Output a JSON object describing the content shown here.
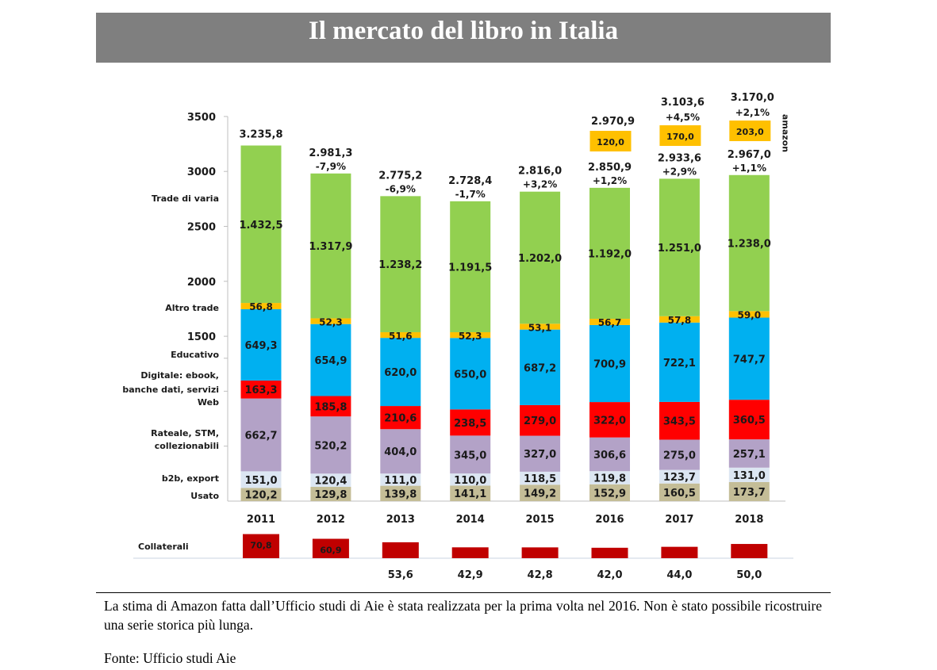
{
  "page": {
    "title": "Il mercato del libro in Italia",
    "footnote": "La stima di Amazon fatta dall’Ufficio studi di Aie è stata realizzata per la prima volta nel 2016. Non è stato possibile ricostruire una serie storica più lunga.",
    "source": "Fonte: Ufficio studi Aie"
  },
  "chart_data": {
    "type": "bar",
    "stacked": true,
    "title": "Il mercato del libro in Italia",
    "xlabel": "",
    "ylabel": "",
    "ylim": [
      0,
      3500
    ],
    "yticks": [
      1500,
      2000,
      2500,
      3000,
      3500
    ],
    "grid": false,
    "categories": [
      "2011",
      "2012",
      "2013",
      "2014",
      "2015",
      "2016",
      "2017",
      "2018"
    ],
    "series": [
      {
        "name": "Usato",
        "color": "#c4bd97",
        "values": [
          120.2,
          129.8,
          139.8,
          141.1,
          149.2,
          152.9,
          160.5,
          173.7
        ],
        "labels": [
          "120,2",
          "129,8",
          "139,8",
          "141,1",
          "149,2",
          "152,9",
          "160,5",
          "173,7"
        ]
      },
      {
        "name": "b2b, export",
        "color": "#dce6f2",
        "values": [
          151.0,
          120.4,
          111.0,
          110.0,
          118.5,
          119.8,
          123.7,
          131.0
        ],
        "labels": [
          "151,0",
          "120,4",
          "111,0",
          "110,0",
          "118,5",
          "119,8",
          "123,7",
          "131,0"
        ]
      },
      {
        "name": "Rateale, STM, collezionabili",
        "color": "#b3a2c7",
        "values": [
          662.7,
          520.2,
          404.0,
          345.0,
          327.0,
          306.6,
          275.0,
          257.1
        ],
        "labels": [
          "662,7",
          "520,2",
          "404,0",
          "345,0",
          "327,0",
          "306,6",
          "275,0",
          "257,1"
        ]
      },
      {
        "name": "Digitale: ebook, banche dati, servizi Web",
        "color": "#ff0000",
        "values": [
          163.3,
          185.8,
          210.6,
          238.5,
          279.0,
          322.0,
          343.5,
          360.5
        ],
        "labels": [
          "163,3",
          "185,8",
          "210,6",
          "238,5",
          "279,0",
          "322,0",
          "343,5",
          "360,5"
        ]
      },
      {
        "name": "Educativo",
        "color": "#00b0f0",
        "values": [
          649.3,
          654.9,
          620.0,
          650.0,
          687.2,
          700.9,
          722.1,
          747.7
        ],
        "labels": [
          "649,3",
          "654,9",
          "620,0",
          "650,0",
          "687,2",
          "700,9",
          "722,1",
          "747,7"
        ]
      },
      {
        "name": "Altro trade",
        "color": "#ffc000",
        "values": [
          56.8,
          52.3,
          51.6,
          52.3,
          53.1,
          56.7,
          57.8,
          59.0
        ],
        "labels": [
          "56,8",
          "52,3",
          "51,6",
          "52,3",
          "53,1",
          "56,7",
          "57,8",
          "59,0"
        ]
      },
      {
        "name": "Trade di varia",
        "color": "#92d050",
        "values": [
          1432.5,
          1317.9,
          1238.2,
          1191.5,
          1202.0,
          1192.0,
          1251.0,
          1238.0
        ],
        "labels": [
          "1.432,5",
          "1.317,9",
          "1.238,2",
          "1.191,5",
          "1.202,0",
          "1.192,0",
          "1.251,0",
          "1.238,0"
        ]
      }
    ],
    "legend_labels": [
      {
        "text": "Trade di varia"
      },
      {
        "text": "Altro trade"
      },
      {
        "text": "Educativo"
      },
      {
        "text": "Digitale: ebook,"
      },
      {
        "text": "banche dati, servizi"
      },
      {
        "text": "Web"
      },
      {
        "text": "Rateale, STM,"
      },
      {
        "text": "collezionabili"
      },
      {
        "text": "b2b, export"
      },
      {
        "text": "Usato"
      }
    ],
    "totals": [
      "3.235,8",
      "2.981,3",
      "2.775,2",
      "2.728,4",
      "2.816,0",
      "2.850,9",
      "2.933,6",
      "2.967,0"
    ],
    "total_values": [
      3235.8,
      2981.3,
      2775.2,
      2728.4,
      2816.0,
      2850.9,
      2933.6,
      2967.0
    ],
    "changes": [
      "",
      "-7,9%",
      "-6,9%",
      "-1,7%",
      "+3,2%",
      "+1,2%",
      "+2,9%",
      "+1,1%"
    ],
    "change_colors": {
      "negative": "#ff0000",
      "positive": "#1a1a1a"
    },
    "amazon": {
      "label": "amazon",
      "color": "#ffc000",
      "values": [
        null,
        null,
        null,
        null,
        null,
        120.0,
        170.0,
        203.0
      ],
      "labels": [
        "",
        "",
        "",
        "",
        "",
        "120,0",
        "170,0",
        "203,0"
      ],
      "totals_with_amazon": [
        "",
        "",
        "",
        "",
        "",
        "2.970,9",
        "3.103,6",
        "3.170,0"
      ],
      "total_with_amazon_values": [
        null,
        null,
        null,
        null,
        null,
        2970.9,
        3103.6,
        3170.0
      ],
      "changes_with_amazon": [
        "",
        "",
        "",
        "",
        "",
        "",
        "+4,5%",
        "+2,1%"
      ]
    },
    "collaterali": {
      "name": "Collaterali",
      "color": "#c00000",
      "values": [
        70.8,
        60.9,
        53.6,
        42.9,
        42.8,
        42.0,
        44.0,
        50.0
      ],
      "labels": [
        "70,8",
        "60,9",
        "53,6",
        "42,9",
        "42,8",
        "42,0",
        "44,0",
        "50,0"
      ]
    }
  }
}
